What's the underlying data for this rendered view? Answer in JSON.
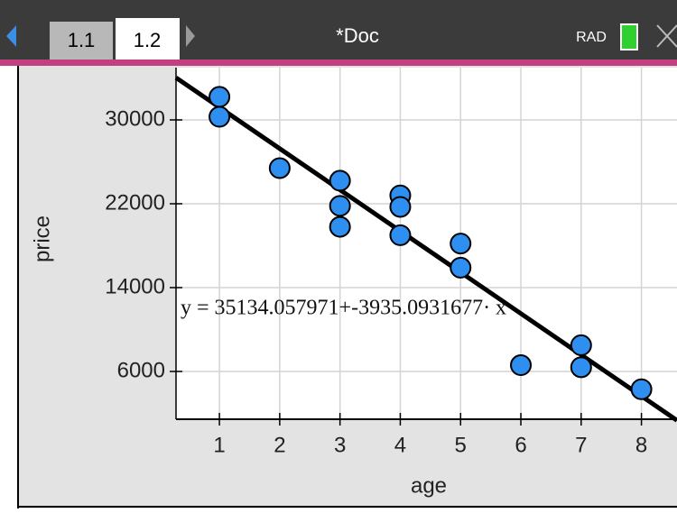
{
  "header": {
    "tabs": [
      "1.1",
      "1.2"
    ],
    "document": "*Doc",
    "mode": "RAD"
  },
  "chart_data": {
    "type": "scatter",
    "x_label": "age",
    "y_label": "price",
    "x": [
      1,
      1,
      2,
      3,
      3,
      3,
      4,
      4,
      4,
      5,
      5,
      6,
      7,
      7,
      8
    ],
    "values": [
      32200,
      30300,
      25400,
      24200,
      21800,
      19800,
      22800,
      21700,
      19000,
      18200,
      15900,
      6600,
      8500,
      6400,
      4300
    ],
    "color": "#2f8ff0",
    "xlim": [
      0.28,
      8.59
    ],
    "ylim": [
      1440,
      34990
    ],
    "xticks": [
      1,
      2,
      3,
      4,
      5,
      6,
      7,
      8
    ],
    "yticks": [
      6000,
      14000,
      22000,
      30000
    ],
    "grid": true,
    "regression": {
      "label": "y = 35134.057971+-3935.0931677· x",
      "intercept": 35134.057971,
      "slope": -3935.0931677,
      "color": "#000000"
    }
  }
}
